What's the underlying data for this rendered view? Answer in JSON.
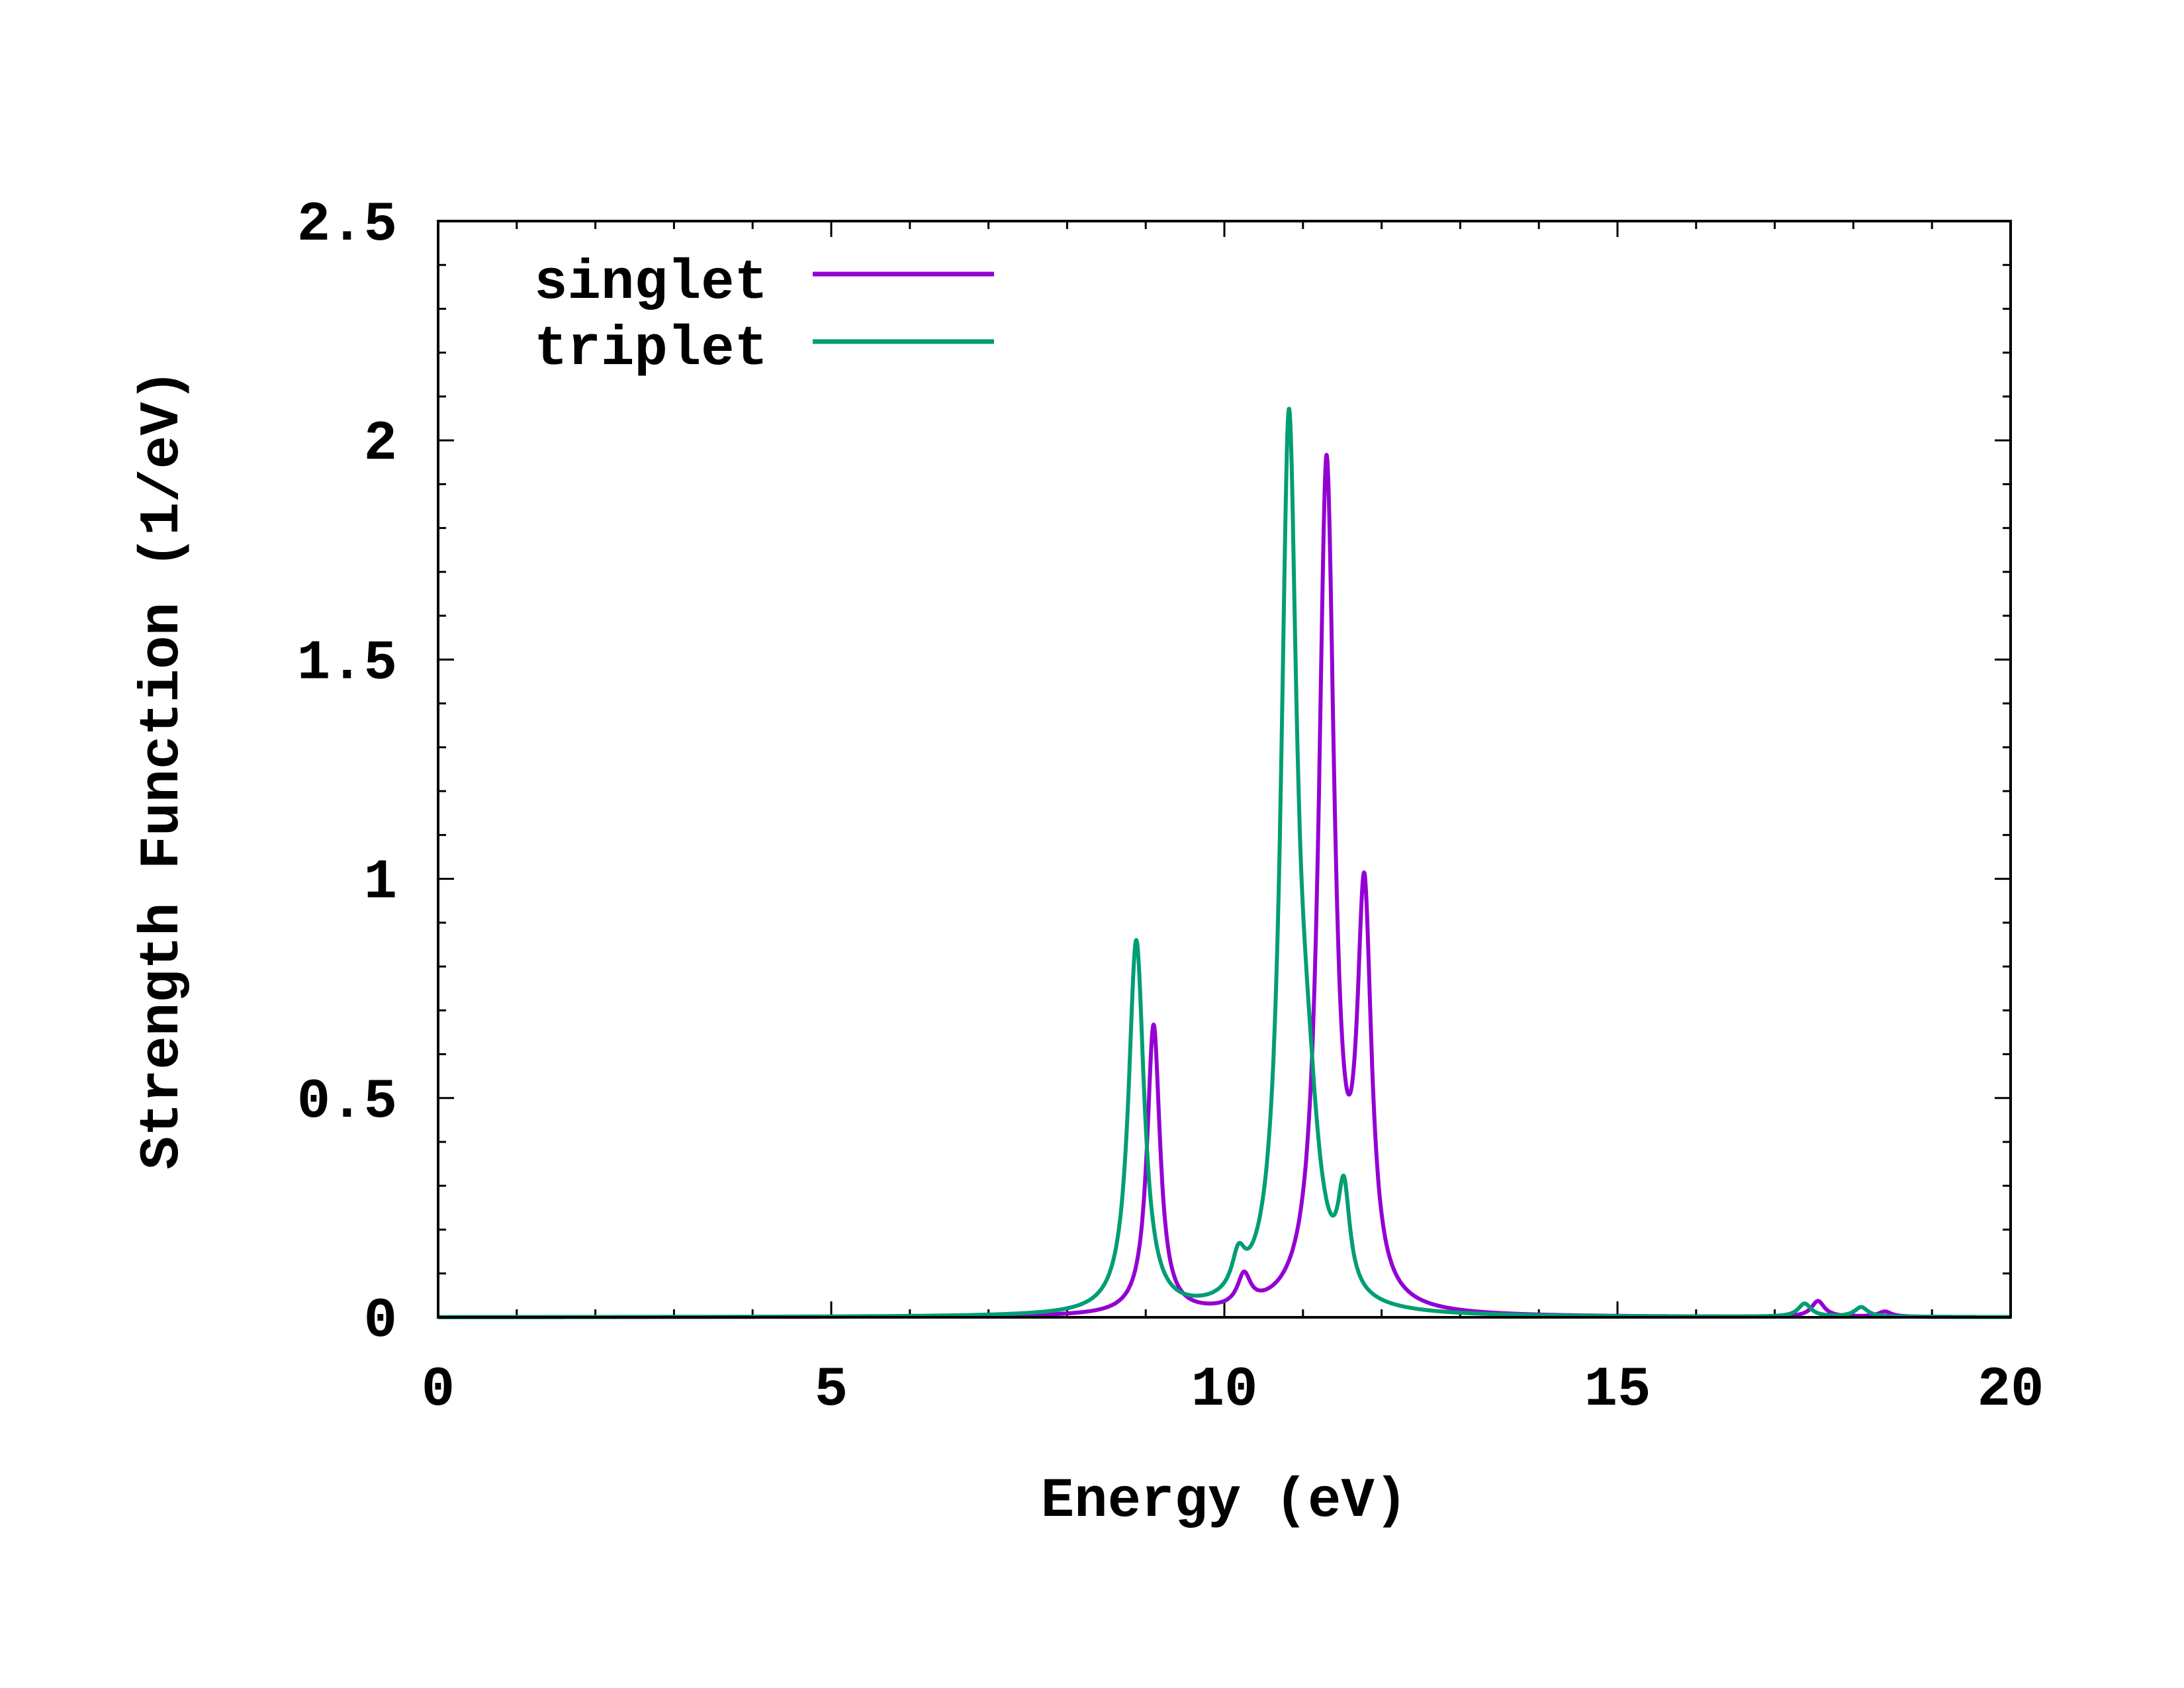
{
  "chart_data": {
    "type": "line",
    "title": "",
    "xlabel": "Energy (eV)",
    "ylabel": "Strength Function (1/eV)",
    "xlim": [
      0,
      20
    ],
    "ylim": [
      0,
      2.5
    ],
    "xticks": [
      0,
      5,
      10,
      15,
      20
    ],
    "xtick_labels": [
      "0",
      "5",
      "10",
      "15",
      "20"
    ],
    "yticks": [
      0,
      0.5,
      1,
      1.5,
      2,
      2.5
    ],
    "ytick_labels": [
      "0",
      "0.5",
      "1",
      "1.5",
      "2",
      "2.5"
    ],
    "grid": false,
    "legend_position": "top-left",
    "series": [
      {
        "name": "singlet",
        "color": "#9400d3",
        "peaks": [
          {
            "x": 9.1,
            "height": 0.66,
            "width": 0.1
          },
          {
            "x": 10.25,
            "height": 0.07,
            "width": 0.1
          },
          {
            "x": 11.3,
            "height": 1.92,
            "width": 0.12
          },
          {
            "x": 11.78,
            "height": 0.9,
            "width": 0.11
          },
          {
            "x": 17.55,
            "height": 0.036,
            "width": 0.1
          },
          {
            "x": 18.4,
            "height": 0.012,
            "width": 0.1
          }
        ]
      },
      {
        "name": "triplet",
        "color": "#009e73",
        "peaks": [
          {
            "x": 8.88,
            "height": 0.85,
            "width": 0.12
          },
          {
            "x": 10.18,
            "height": 0.08,
            "width": 0.1
          },
          {
            "x": 10.82,
            "height": 1.93,
            "width": 0.12
          },
          {
            "x": 11.05,
            "height": 0.35,
            "width": 0.18
          },
          {
            "x": 11.52,
            "height": 0.22,
            "width": 0.09
          },
          {
            "x": 17.38,
            "height": 0.03,
            "width": 0.1
          },
          {
            "x": 18.1,
            "height": 0.022,
            "width": 0.1
          }
        ]
      }
    ]
  }
}
